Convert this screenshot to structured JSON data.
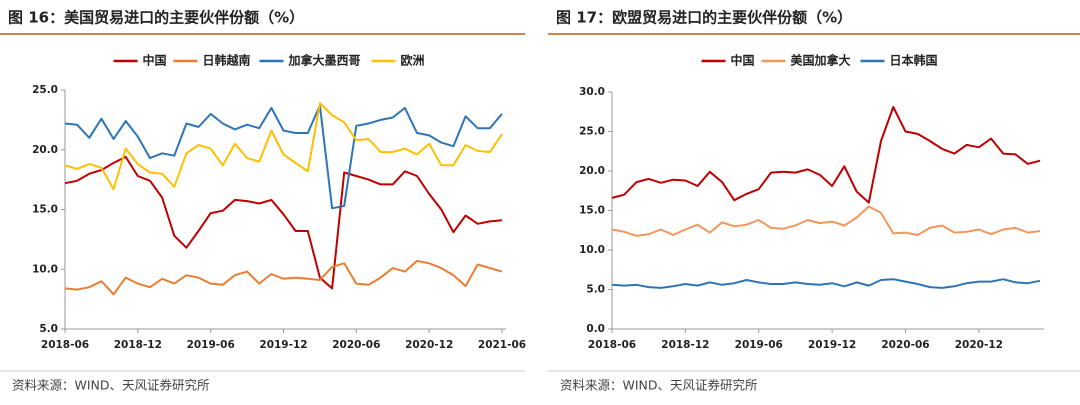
{
  "chart_data": [
    {
      "type": "line",
      "title": "图 16：美国贸易进口的主要伙伴份额（%）",
      "source": "资料来源：WIND、天风证券研究所",
      "categories": [
        "2018-06",
        null,
        null,
        null,
        null,
        null,
        "2018-12",
        null,
        null,
        null,
        null,
        null,
        "2019-06",
        null,
        null,
        null,
        null,
        null,
        "2019-12",
        null,
        null,
        null,
        null,
        null,
        "2020-06",
        null,
        null,
        null,
        null,
        null,
        "2020-12",
        null,
        null,
        null,
        null,
        null,
        "2021-06"
      ],
      "ylim": [
        5,
        25
      ],
      "yticks": [
        {
          "value": 5,
          "label": "5.0"
        },
        {
          "value": 10,
          "label": "10.0"
        },
        {
          "value": 15,
          "label": "15.0"
        },
        {
          "value": 20,
          "label": "20.0"
        },
        {
          "value": 25,
          "label": "25.0"
        }
      ],
      "series": [
        {
          "name": "中国",
          "color": "#c00000",
          "values": [
            17.2,
            17.4,
            18.0,
            18.3,
            18.9,
            19.4,
            17.8,
            17.4,
            16.0,
            12.8,
            11.8,
            13.2,
            14.7,
            14.9,
            15.8,
            15.7,
            15.5,
            15.8,
            14.6,
            13.2,
            13.2,
            9.3,
            8.4,
            18.1,
            17.8,
            17.5,
            17.1,
            17.1,
            18.2,
            17.8,
            16.3,
            15.0,
            13.1,
            14.5,
            13.8,
            14.0,
            14.1
          ]
        },
        {
          "name": "日韩越南",
          "color": "#ed7d31",
          "values": [
            8.4,
            8.3,
            8.5,
            9.0,
            7.9,
            9.3,
            8.8,
            8.5,
            9.2,
            8.8,
            9.5,
            9.3,
            8.8,
            8.7,
            9.5,
            9.8,
            8.8,
            9.6,
            9.2,
            9.3,
            9.2,
            9.1,
            10.2,
            10.5,
            8.8,
            8.7,
            9.3,
            10.1,
            9.8,
            10.7,
            10.5,
            10.1,
            9.5,
            8.6,
            10.4,
            10.1,
            9.8
          ]
        },
        {
          "name": "加拿大墨西哥",
          "color": "#2e75b6",
          "values": [
            22.2,
            22.1,
            21.0,
            22.6,
            20.9,
            22.4,
            21.1,
            19.3,
            19.7,
            19.5,
            22.2,
            21.9,
            23.0,
            22.2,
            21.7,
            22.1,
            21.8,
            23.5,
            21.6,
            21.4,
            21.4,
            23.7,
            15.1,
            15.3,
            22.0,
            22.2,
            22.5,
            22.7,
            23.5,
            21.4,
            21.2,
            20.6,
            20.3,
            22.8,
            21.8,
            21.8,
            23.0
          ]
        },
        {
          "name": "欧洲",
          "color": "#ffc000",
          "values": [
            18.7,
            18.4,
            18.8,
            18.5,
            16.7,
            20.1,
            18.8,
            18.1,
            18.0,
            16.9,
            19.7,
            20.4,
            20.1,
            18.7,
            20.5,
            19.3,
            19.0,
            21.6,
            19.6,
            18.9,
            18.2,
            23.9,
            22.9,
            22.3,
            20.8,
            20.9,
            19.8,
            19.8,
            20.1,
            19.6,
            20.5,
            18.7,
            18.7,
            20.4,
            19.9,
            19.8,
            21.3
          ]
        }
      ]
    },
    {
      "type": "line",
      "title": "图 17：欧盟贸易进口的主要伙伴份额（%）",
      "source": "资料来源：WIND、天风证券研究所",
      "categories": [
        "2018-06",
        null,
        null,
        null,
        null,
        null,
        "2018-12",
        null,
        null,
        null,
        null,
        null,
        "2019-06",
        null,
        null,
        null,
        null,
        null,
        "2019-12",
        null,
        null,
        null,
        null,
        null,
        "2020-06",
        null,
        null,
        null,
        null,
        null,
        "2020-12",
        null,
        null,
        null,
        null,
        null
      ],
      "ylim": [
        0,
        30
      ],
      "yticks": [
        {
          "value": 0,
          "label": "0.0"
        },
        {
          "value": 5,
          "label": "5.0"
        },
        {
          "value": 10,
          "label": "10.0"
        },
        {
          "value": 15,
          "label": "15.0"
        },
        {
          "value": 20,
          "label": "20.0"
        },
        {
          "value": 25,
          "label": "25.0"
        },
        {
          "value": 30,
          "label": "30.0"
        }
      ],
      "series": [
        {
          "name": "中国",
          "color": "#c00000",
          "values": [
            16.6,
            17.0,
            18.6,
            19.0,
            18.5,
            18.9,
            18.8,
            18.1,
            19.9,
            18.6,
            16.3,
            17.1,
            17.7,
            19.8,
            19.9,
            19.8,
            20.2,
            19.5,
            18.1,
            20.6,
            17.4,
            16.0,
            23.8,
            28.1,
            25.0,
            24.7,
            23.8,
            22.8,
            22.2,
            23.3,
            23.0,
            24.1,
            22.2,
            22.1,
            20.9,
            21.3
          ]
        },
        {
          "name": "美国加拿大",
          "color": "#f4975a",
          "values": [
            12.6,
            12.3,
            11.8,
            12.0,
            12.6,
            11.9,
            12.6,
            13.2,
            12.2,
            13.5,
            13.0,
            13.2,
            13.8,
            12.8,
            12.7,
            13.1,
            13.8,
            13.4,
            13.6,
            13.1,
            14.1,
            15.5,
            14.7,
            12.1,
            12.2,
            11.9,
            12.8,
            13.1,
            12.2,
            12.3,
            12.6,
            12.0,
            12.6,
            12.8,
            12.2,
            12.4
          ]
        },
        {
          "name": "日本韩国",
          "color": "#2e75b6",
          "values": [
            5.6,
            5.5,
            5.6,
            5.3,
            5.2,
            5.4,
            5.7,
            5.5,
            5.9,
            5.6,
            5.8,
            6.2,
            5.9,
            5.7,
            5.7,
            5.9,
            5.7,
            5.6,
            5.8,
            5.4,
            5.9,
            5.5,
            6.2,
            6.3,
            6.0,
            5.7,
            5.3,
            5.2,
            5.4,
            5.8,
            6.0,
            6.0,
            6.3,
            5.9,
            5.8,
            6.1
          ]
        }
      ]
    }
  ]
}
